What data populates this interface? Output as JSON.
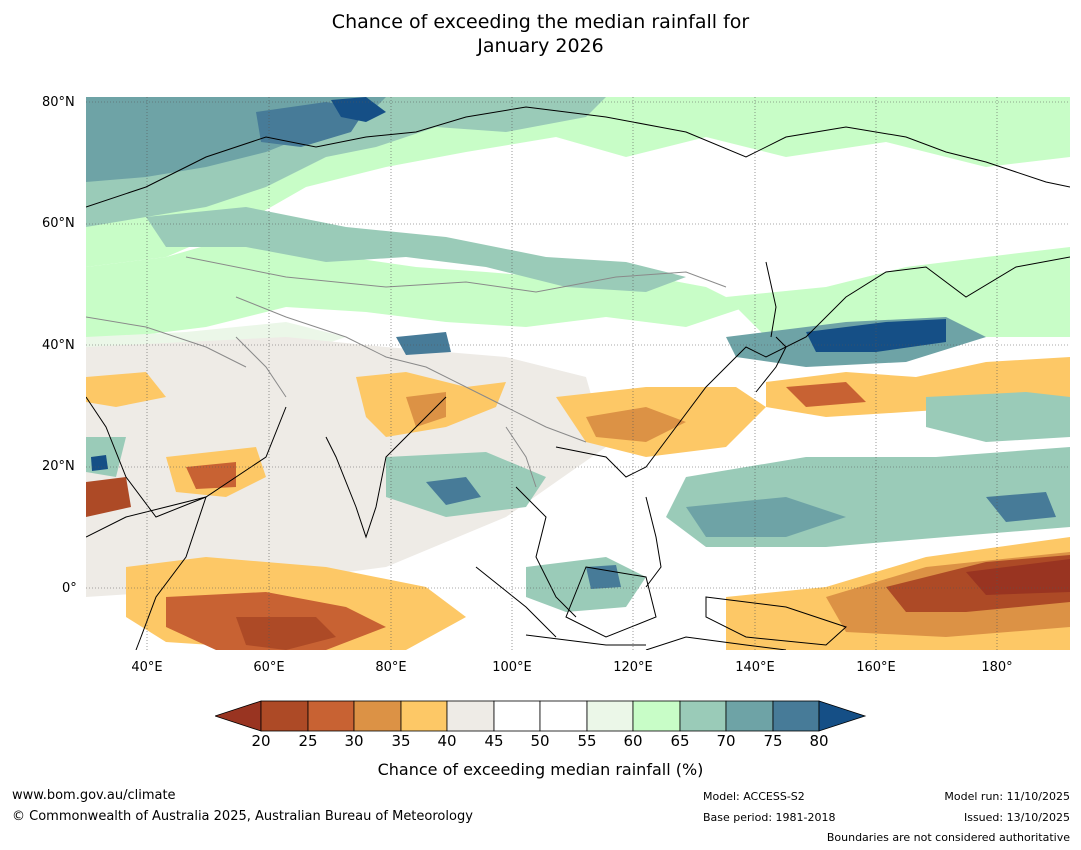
{
  "title": {
    "line1": "Chance of exceeding the median rainfall for",
    "line2": "January 2026"
  },
  "map": {
    "lat_labels": [
      "80°N",
      "60°N",
      "40°N",
      "20°N",
      "0°"
    ],
    "lon_labels": [
      "40°E",
      "60°E",
      "80°E",
      "100°E",
      "120°E",
      "140°E",
      "160°E",
      "180°"
    ],
    "colors": {
      "c20": "#993421",
      "c25": "#ad4a26",
      "c30": "#c86233",
      "c35": "#dc9245",
      "c40": "#fdc866",
      "c45": "#eeebe6",
      "c50": "#ffffff",
      "c55": "#ffffff",
      "c60": "#ebf7e8",
      "c65": "#c8fdc7",
      "c70": "#9acbb8",
      "c75": "#6ea3a6",
      "c80": "#477b98",
      "c85": "#154f86",
      "ocean": "#ffffff",
      "coast": "#000000",
      "border": "#8a8a8a"
    }
  },
  "colorbar": {
    "ticks": [
      "20",
      "25",
      "30",
      "35",
      "40",
      "45",
      "50",
      "55",
      "60",
      "65",
      "70",
      "75",
      "80"
    ],
    "label": "Chance of exceeding median rainfall (%)"
  },
  "footer": {
    "website": "www.bom.gov.au/climate",
    "copyright": "© Commonwealth of Australia 2025, Australian Bureau of Meteorology",
    "model": "Model: ACCESS-S2",
    "base_period": "Base period: 1981-2018",
    "model_run": "Model run: 11/10/2025",
    "issued": "Issued: 13/10/2025",
    "disclaimer": "Boundaries are not considered authoritative"
  }
}
